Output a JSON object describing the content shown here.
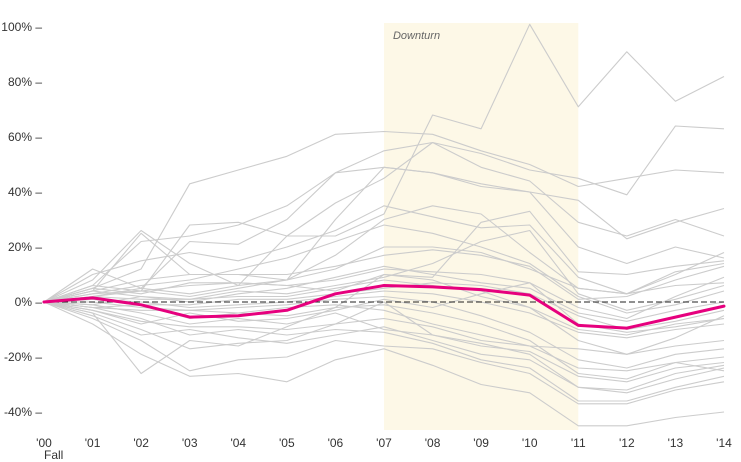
{
  "chart_data": {
    "type": "line",
    "x": [
      "'00",
      "'01",
      "'02",
      "'03",
      "'04",
      "'05",
      "'06",
      "'07",
      "'08",
      "'09",
      "'10",
      "'11",
      "'12",
      "'13",
      "'14"
    ],
    "x_sub_label": "Fall",
    "ylim": [
      -45,
      102
    ],
    "y_ticks": [
      {
        "value": 100,
        "label": "100% –"
      },
      {
        "value": 80,
        "label": "80% –"
      },
      {
        "value": 60,
        "label": "60% –"
      },
      {
        "value": 40,
        "label": "40% –"
      },
      {
        "value": 20,
        "label": "20% –"
      },
      {
        "value": 0,
        "label": "0% –"
      },
      {
        "value": -20,
        "label": "-20% –"
      },
      {
        "value": -40,
        "label": "-40% –"
      }
    ],
    "grid": false,
    "shaded_region": {
      "label": "Downturn",
      "x_start": "'07",
      "x_end": "'11",
      "color": "#fdf8e7"
    },
    "highlight_series": {
      "color": "#e6007e",
      "values": [
        0,
        1.5,
        -1,
        -5.5,
        -5,
        -3,
        3,
        6,
        5.5,
        4.5,
        2.5,
        -8.5,
        -9.5,
        -5.5,
        -1.5
      ]
    },
    "background_series_color": "#cccccc",
    "background_series": [
      [
        0,
        5,
        12,
        43,
        48,
        53,
        61,
        62,
        61,
        55,
        50,
        42,
        45,
        48,
        47
      ],
      [
        0,
        8,
        26,
        14,
        6,
        24,
        24,
        32,
        68,
        63,
        101,
        71,
        91,
        73,
        82
      ],
      [
        0,
        6,
        4,
        28,
        29,
        24,
        36,
        45,
        58,
        54,
        48,
        45,
        39,
        64,
        63
      ],
      [
        0,
        4,
        25,
        10,
        10,
        8,
        30,
        49,
        47,
        43,
        40,
        37,
        23,
        29,
        34
      ],
      [
        0,
        12,
        5,
        22,
        21,
        30,
        47,
        55,
        58,
        49,
        44,
        29,
        24,
        30,
        24
      ],
      [
        0,
        6,
        22,
        24,
        28,
        35,
        47,
        49,
        47,
        42,
        40,
        20,
        14,
        20,
        16
      ],
      [
        0,
        10,
        15,
        18,
        15,
        20,
        26,
        35,
        31,
        27,
        28,
        9,
        3,
        10,
        18
      ],
      [
        0,
        4,
        8,
        10,
        10,
        10,
        13,
        17,
        19,
        17,
        13,
        1,
        2,
        8,
        13
      ],
      [
        0,
        -4,
        -26,
        -14,
        -16,
        -9,
        -2,
        10,
        9,
        29,
        33,
        11,
        10,
        13,
        15
      ],
      [
        0,
        3,
        4,
        2,
        5,
        8,
        17,
        30,
        35,
        32,
        18,
        5,
        3,
        11,
        14
      ],
      [
        0,
        5,
        3,
        7,
        7,
        6,
        8,
        12,
        11,
        10,
        7,
        -2,
        -6,
        2,
        9
      ],
      [
        0,
        2,
        5,
        3,
        6,
        8,
        12,
        20,
        20,
        18,
        12,
        5,
        3,
        6,
        7
      ],
      [
        0,
        2,
        1,
        1,
        2,
        2,
        5,
        8,
        6,
        4,
        -2,
        -14,
        -19,
        -13,
        -5
      ],
      [
        0,
        1,
        -1,
        -1,
        1,
        1,
        3,
        5,
        7,
        6,
        3,
        -5,
        -10,
        -7,
        -3
      ],
      [
        0,
        -2,
        -3,
        -3,
        -2,
        -1,
        1,
        2,
        0,
        -5,
        -11,
        -21,
        -24,
        -19,
        -17
      ],
      [
        0,
        0,
        -2,
        -3,
        -4,
        -5,
        -2,
        -1,
        -4,
        -8,
        -14,
        -26,
        -28,
        -22,
        -20
      ],
      [
        0,
        -1,
        -4,
        -8,
        -6,
        -8,
        -4,
        -10,
        -12,
        -15,
        -19,
        -31,
        -32,
        -26,
        -23
      ],
      [
        0,
        -2,
        -6,
        -12,
        -10,
        -12,
        -10,
        -11,
        -15,
        -21,
        -24,
        -36,
        -36,
        -31,
        -27
      ],
      [
        0,
        -4,
        -10,
        -17,
        -15,
        -14,
        -8,
        -6,
        -9,
        -14,
        -16,
        -24,
        -25,
        -22,
        -25
      ],
      [
        0,
        -6,
        -14,
        -25,
        -21,
        -20,
        -14,
        -16,
        -17,
        -22,
        -26,
        -37,
        -37,
        -32,
        -29
      ],
      [
        0,
        -8,
        -19,
        -27,
        -26,
        -29,
        -21,
        -17,
        -23,
        -30,
        -33,
        -45,
        -45,
        -42,
        -40
      ],
      [
        0,
        -3,
        -7,
        -9,
        -9,
        -10,
        -8,
        0,
        -12,
        -16,
        -18,
        -27,
        -29,
        -24,
        -22
      ],
      [
        0,
        2,
        4,
        6,
        7,
        6,
        4,
        10,
        8,
        2,
        -2,
        -10,
        -12,
        -8,
        -6
      ],
      [
        0,
        -1,
        2,
        1,
        4,
        3,
        6,
        9,
        14,
        22,
        26,
        3,
        -3,
        1,
        6
      ],
      [
        0,
        3,
        6,
        8,
        12,
        16,
        22,
        28,
        25,
        20,
        14,
        2,
        -4,
        -1,
        4
      ],
      [
        0,
        -2,
        -1,
        -6,
        -4,
        -2,
        -1,
        -3,
        -8,
        -12,
        -16,
        -17,
        -19,
        -16,
        -14
      ],
      [
        0,
        1,
        0,
        -2,
        -1,
        0,
        2,
        4,
        3,
        0,
        -4,
        -11,
        -13,
        -10,
        -8
      ],
      [
        0,
        -3,
        -8,
        -4,
        -7,
        -6,
        -3,
        1,
        -2,
        3,
        7,
        -8,
        -11,
        -9,
        -6
      ],
      [
        0,
        4,
        2,
        0,
        3,
        5,
        9,
        13,
        10,
        7,
        5,
        -4,
        -7,
        -3,
        0
      ],
      [
        0,
        -5,
        -12,
        -10,
        -13,
        -15,
        -12,
        -9,
        -14,
        -19,
        -21,
        -31,
        -33,
        -28,
        -24
      ]
    ],
    "dashed_baseline": 0
  }
}
